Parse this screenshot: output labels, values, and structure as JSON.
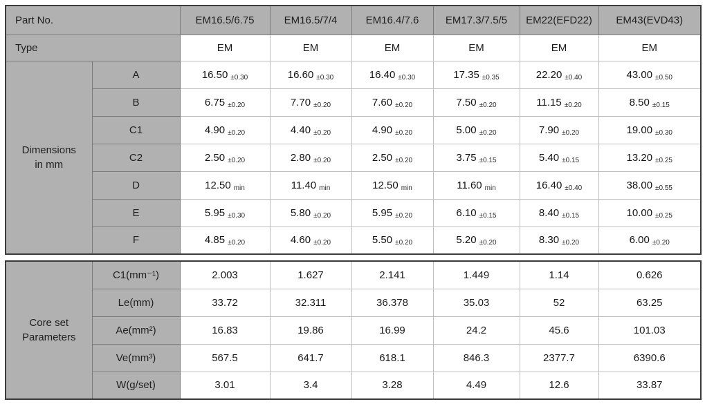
{
  "colors": {
    "header_bg": "#b1b1b1",
    "outer_border": "#3a3a3a",
    "gray_line": "#7b7b7b",
    "white_line": "#bdbdbd"
  },
  "table1": {
    "part_no_label": "Part No.",
    "type_label": "Type",
    "section_label": "Dimensions\nin mm",
    "columns": [
      "EM16.5/6.75",
      "EM16.5/7/4",
      "EM16.4/7.6",
      "EM17.3/7.5/5",
      "EM22(EFD22)",
      "EM43(EVD43)"
    ],
    "type_values": [
      "EM",
      "EM",
      "EM",
      "EM",
      "EM",
      "EM"
    ],
    "dim_rows": [
      {
        "label": "A",
        "values": [
          {
            "v": "16.50",
            "t": "±0.30"
          },
          {
            "v": "16.60",
            "t": "±0.30"
          },
          {
            "v": "16.40",
            "t": "±0.30"
          },
          {
            "v": "17.35",
            "t": "±0.35"
          },
          {
            "v": "22.20",
            "t": "±0.40"
          },
          {
            "v": "43.00",
            "t": "±0.50"
          }
        ]
      },
      {
        "label": "B",
        "values": [
          {
            "v": "6.75",
            "t": "±0.20"
          },
          {
            "v": "7.70",
            "t": "±0.20"
          },
          {
            "v": "7.60",
            "t": "±0.20"
          },
          {
            "v": "7.50",
            "t": "±0.20"
          },
          {
            "v": "11.15",
            "t": "±0.20"
          },
          {
            "v": "8.50",
            "t": "±0.15"
          }
        ]
      },
      {
        "label": "C1",
        "values": [
          {
            "v": "4.90",
            "t": "±0.20"
          },
          {
            "v": "4.40",
            "t": "±0.20"
          },
          {
            "v": "4.90",
            "t": "±0.20"
          },
          {
            "v": "5.00",
            "t": "±0.20"
          },
          {
            "v": "7.90",
            "t": "±0.20"
          },
          {
            "v": "19.00",
            "t": "±0.30"
          }
        ]
      },
      {
        "label": "C2",
        "values": [
          {
            "v": "2.50",
            "t": "±0.20"
          },
          {
            "v": "2.80",
            "t": "±0.20"
          },
          {
            "v": "2.50",
            "t": "±0.20"
          },
          {
            "v": "3.75",
            "t": "±0.15"
          },
          {
            "v": "5.40",
            "t": "±0.15"
          },
          {
            "v": "13.20",
            "t": "±0.25"
          }
        ]
      },
      {
        "label": "D",
        "values": [
          {
            "v": "12.50",
            "t": "min"
          },
          {
            "v": "11.40",
            "t": "min"
          },
          {
            "v": "12.50",
            "t": "min"
          },
          {
            "v": "11.60",
            "t": "min"
          },
          {
            "v": "16.40",
            "t": "±0.40"
          },
          {
            "v": "38.00",
            "t": "±0.55"
          }
        ]
      },
      {
        "label": "E",
        "values": [
          {
            "v": "5.95",
            "t": "±0.30"
          },
          {
            "v": "5.80",
            "t": "±0.20"
          },
          {
            "v": "5.95",
            "t": "±0.20"
          },
          {
            "v": "6.10",
            "t": "±0.15"
          },
          {
            "v": "8.40",
            "t": "±0.15"
          },
          {
            "v": "10.00",
            "t": "±0.25"
          }
        ]
      },
      {
        "label": "F",
        "values": [
          {
            "v": "4.85",
            "t": "±0.20"
          },
          {
            "v": "4.60",
            "t": "±0.20"
          },
          {
            "v": "5.50",
            "t": "±0.20"
          },
          {
            "v": "5.20",
            "t": "±0.20"
          },
          {
            "v": "8.30",
            "t": "±0.20"
          },
          {
            "v": "6.00",
            "t": "±0.20"
          }
        ]
      }
    ]
  },
  "table2": {
    "section_label": "Core set\nParameters",
    "rows": [
      {
        "label": "C1(mm⁻¹)",
        "values": [
          "2.003",
          "1.627",
          "2.141",
          "1.449",
          "1.14",
          "0.626"
        ]
      },
      {
        "label": "Le(mm)",
        "values": [
          "33.72",
          "32.311",
          "36.378",
          "35.03",
          "52",
          "63.25"
        ]
      },
      {
        "label": "Ae(mm²)",
        "values": [
          "16.83",
          "19.86",
          "16.99",
          "24.2",
          "45.6",
          "101.03"
        ]
      },
      {
        "label": "Ve(mm³)",
        "values": [
          "567.5",
          "641.7",
          "618.1",
          "846.3",
          "2377.7",
          "6390.6"
        ]
      },
      {
        "label": "W(g/set)",
        "values": [
          "3.01",
          "3.4",
          "3.28",
          "4.49",
          "12.6",
          "33.87"
        ]
      }
    ]
  }
}
